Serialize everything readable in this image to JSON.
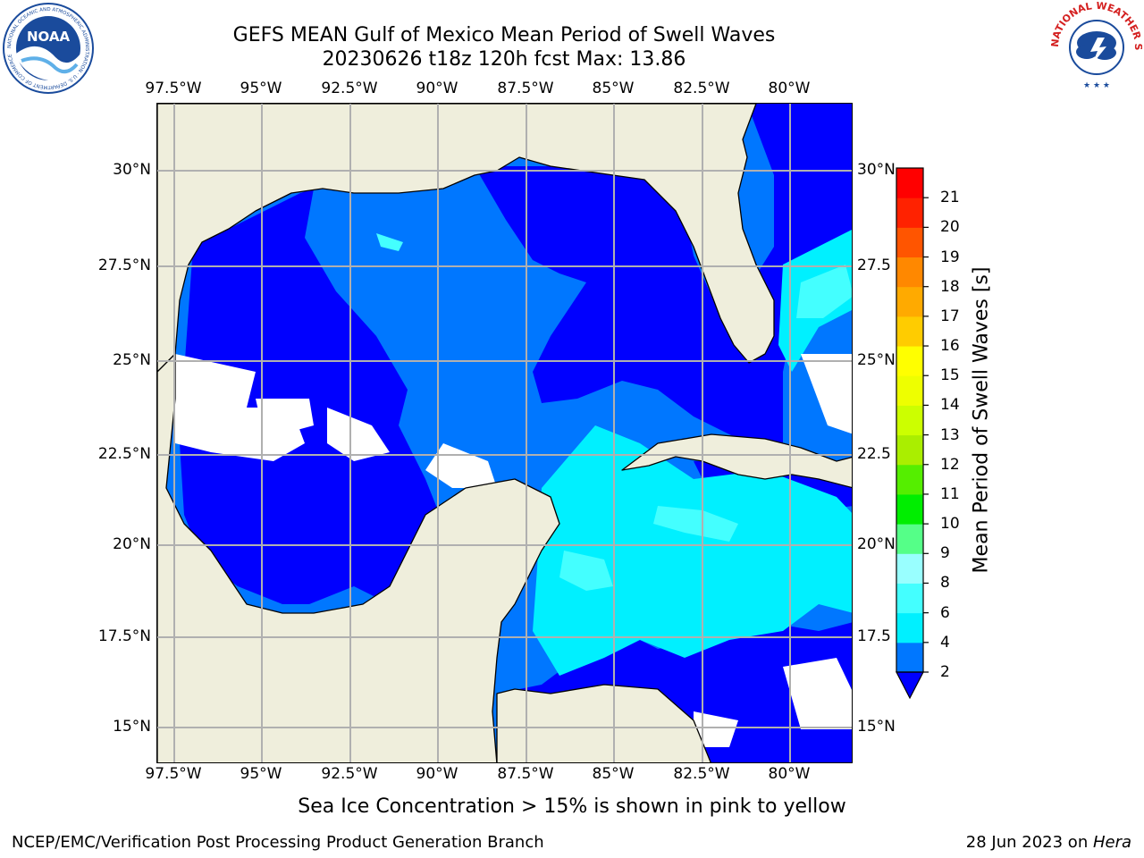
{
  "title": {
    "line1": "GEFS MEAN Gulf of Mexico Mean Period of Swell Waves",
    "line2": "20230626 t18z 120h fcst   Max: 13.86"
  },
  "logos": {
    "left": {
      "icon": "noaa-logo",
      "text": "NOAA",
      "ring_text": "NATIONAL OCEANIC AND ATMOSPHERIC ADMINISTRATION · U.S. DEPARTMENT OF COMMERCE"
    },
    "right": {
      "icon": "nws-logo",
      "ring_text": "NATIONAL WEATHER SERVICE"
    }
  },
  "map": {
    "lon_ticks": [
      "97.5°W",
      "95°W",
      "92.5°W",
      "90°W",
      "87.5°W",
      "85°W",
      "82.5°W",
      "80°W"
    ],
    "lat_ticks": [
      "30°N",
      "27.5°N",
      "25°N",
      "22.5°N",
      "20°N",
      "17.5°N",
      "15°N"
    ],
    "lat_ticks_right": [
      "30°N",
      "27.5",
      "25°N",
      "22.5",
      "20°N",
      "17.5",
      "15°N"
    ],
    "colors": {
      "land": "#efeedc",
      "grid": "#b0b0b0",
      "coast": "#000000",
      "missing": "#ffffff"
    }
  },
  "colorbar": {
    "label": "Mean Period of Swell Waves [s]",
    "ticks": [
      "2",
      "4",
      "6",
      "8",
      "9",
      "10",
      "11",
      "12",
      "13",
      "14",
      "15",
      "16",
      "17",
      "18",
      "19",
      "20",
      "21"
    ],
    "under_color": "#0000ff",
    "colors": [
      "#0077ff",
      "#00f0ff",
      "#44ffff",
      "#99ffff",
      "#55ff88",
      "#00ee00",
      "#55ee00",
      "#aaee00",
      "#ccff00",
      "#eeff00",
      "#ffff00",
      "#ffcc00",
      "#ffaa00",
      "#ff8800",
      "#ff5500",
      "#ff2200",
      "#ff0000"
    ]
  },
  "sea_ice_note": "Sea Ice Concentration > 15% is shown in pink to yellow",
  "footer": {
    "left": "NCEP/EMC/Verification Post Processing Product Generation Branch",
    "date": "28 Jun 2023 on ",
    "host": "Hera"
  }
}
